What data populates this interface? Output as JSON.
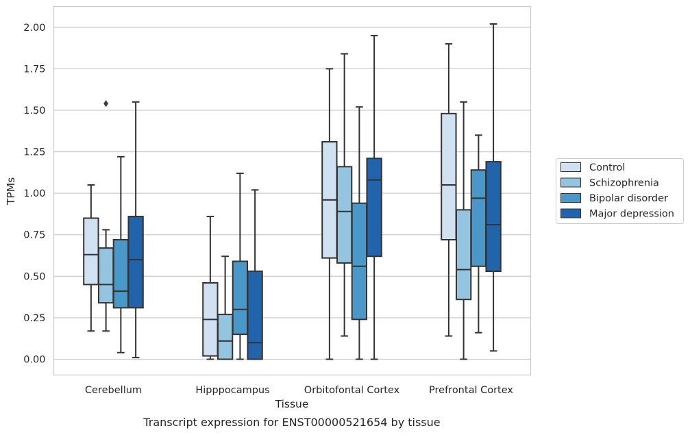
{
  "chart_data": {
    "type": "box",
    "xlabel": "Tissue",
    "ylabel": "TPMs",
    "caption": "Transcript expression for ENST00000521654 by tissue",
    "ylim": [
      -0.095,
      2.125
    ],
    "yticks": [
      "0.00",
      "0.25",
      "0.50",
      "0.75",
      "1.00",
      "1.25",
      "1.50",
      "1.75",
      "2.00"
    ],
    "ytick_values": [
      0,
      0.25,
      0.5,
      0.75,
      1.0,
      1.25,
      1.5,
      1.75,
      2.0
    ],
    "grid": "horizontal",
    "legend_position": "right",
    "categories": [
      "Cerebellum",
      "Hipppocampus",
      "Orbitofontal Cortex",
      "Prefrontal Cortex"
    ],
    "series": [
      {
        "name": "Control",
        "color": "#d0e1f2",
        "boxes": [
          {
            "whisker_low": 0.17,
            "q1": 0.45,
            "median": 0.63,
            "q3": 0.85,
            "whisker_high": 1.05,
            "outliers": []
          },
          {
            "whisker_low": 0.0,
            "q1": 0.02,
            "median": 0.24,
            "q3": 0.46,
            "whisker_high": 0.86,
            "outliers": []
          },
          {
            "whisker_low": 0.0,
            "q1": 0.61,
            "median": 0.96,
            "q3": 1.31,
            "whisker_high": 1.75,
            "outliers": []
          },
          {
            "whisker_low": 0.14,
            "q1": 0.72,
            "median": 1.05,
            "q3": 1.48,
            "whisker_high": 1.9,
            "outliers": []
          }
        ]
      },
      {
        "name": "Schizophrenia",
        "color": "#94c4df",
        "boxes": [
          {
            "whisker_low": 0.17,
            "q1": 0.34,
            "median": 0.45,
            "q3": 0.67,
            "whisker_high": 0.78,
            "outliers": [
              1.54
            ]
          },
          {
            "whisker_low": 0.0,
            "q1": 0.0,
            "median": 0.11,
            "q3": 0.27,
            "whisker_high": 0.62,
            "outliers": []
          },
          {
            "whisker_low": 0.14,
            "q1": 0.58,
            "median": 0.89,
            "q3": 1.16,
            "whisker_high": 1.84,
            "outliers": []
          },
          {
            "whisker_low": 0.0,
            "q1": 0.36,
            "median": 0.54,
            "q3": 0.9,
            "whisker_high": 1.55,
            "outliers": []
          }
        ]
      },
      {
        "name": "Bipolar disorder",
        "color": "#4a98c9",
        "boxes": [
          {
            "whisker_low": 0.04,
            "q1": 0.31,
            "median": 0.41,
            "q3": 0.72,
            "whisker_high": 1.22,
            "outliers": []
          },
          {
            "whisker_low": 0.0,
            "q1": 0.15,
            "median": 0.3,
            "q3": 0.59,
            "whisker_high": 1.12,
            "outliers": []
          },
          {
            "whisker_low": 0.0,
            "q1": 0.24,
            "median": 0.56,
            "q3": 0.94,
            "whisker_high": 1.52,
            "outliers": []
          },
          {
            "whisker_low": 0.16,
            "q1": 0.56,
            "median": 0.97,
            "q3": 1.14,
            "whisker_high": 1.35,
            "outliers": []
          }
        ]
      },
      {
        "name": "Major depression",
        "color": "#2264ab",
        "boxes": [
          {
            "whisker_low": 0.01,
            "q1": 0.31,
            "median": 0.6,
            "q3": 0.86,
            "whisker_high": 1.55,
            "outliers": []
          },
          {
            "whisker_low": 0.0,
            "q1": 0.0,
            "median": 0.1,
            "q3": 0.53,
            "whisker_high": 1.02,
            "outliers": []
          },
          {
            "whisker_low": 0.0,
            "q1": 0.62,
            "median": 1.08,
            "q3": 1.21,
            "whisker_high": 1.95,
            "outliers": []
          },
          {
            "whisker_low": 0.05,
            "q1": 0.53,
            "median": 0.81,
            "q3": 1.19,
            "whisker_high": 2.02,
            "outliers": []
          }
        ]
      }
    ]
  },
  "colors": {
    "grid": "#cccccc",
    "axes_edge": "#cccccc",
    "box_edge": "#333333",
    "legend_edge": "#cccccc"
  }
}
